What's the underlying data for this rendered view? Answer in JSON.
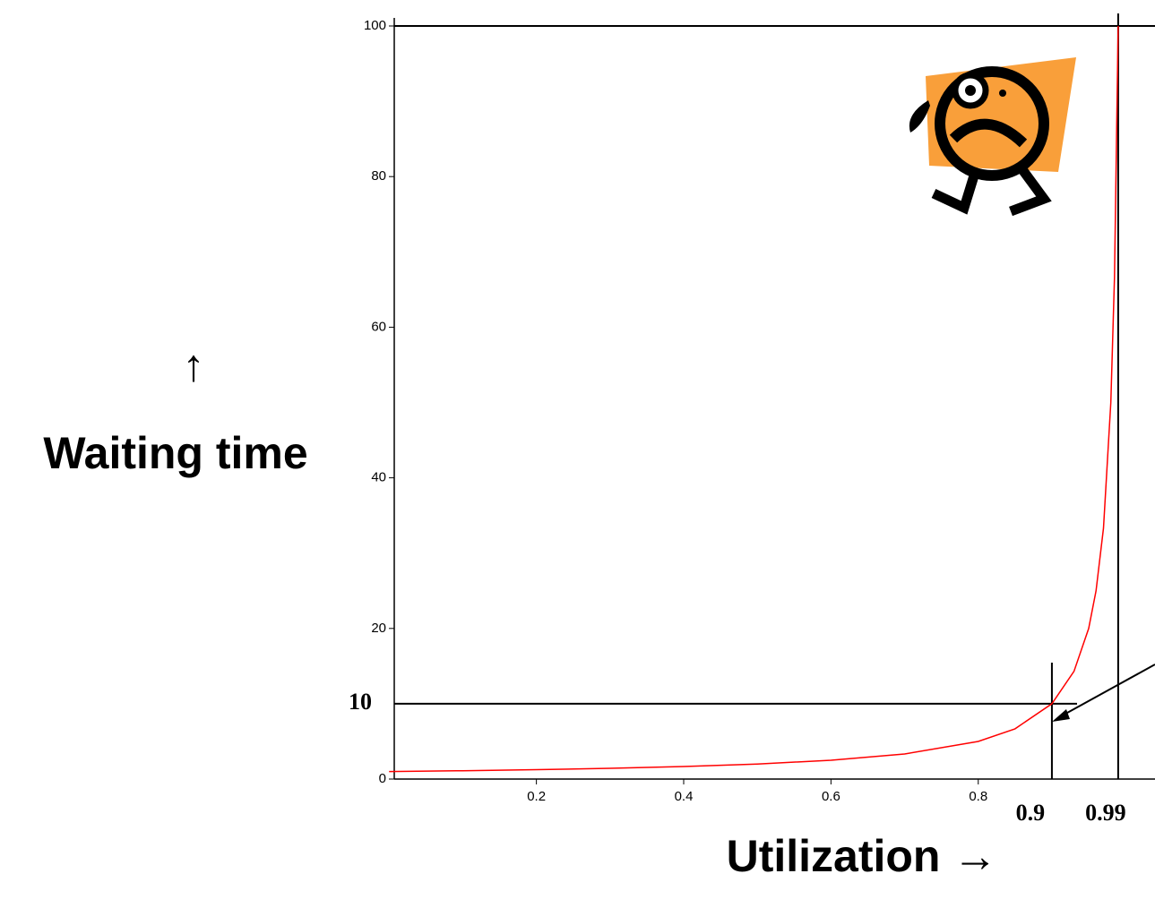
{
  "chart_data": {
    "type": "line",
    "y_label_arrow": "↑",
    "y_label": "Waiting time",
    "x_label": "Utilization  →",
    "x": [
      0,
      0.1,
      0.2,
      0.3,
      0.4,
      0.5,
      0.6,
      0.7,
      0.8,
      0.85,
      0.9,
      0.93,
      0.95,
      0.96,
      0.97,
      0.98,
      0.985,
      0.99
    ],
    "series": [
      {
        "color": "#ff0000",
        "values": [
          1,
          1.11,
          1.25,
          1.43,
          1.67,
          2,
          2.5,
          3.33,
          5,
          6.67,
          10,
          14.3,
          20,
          25,
          33.3,
          50,
          66.7,
          100
        ]
      }
    ],
    "xlim": [
      0.007,
      1.04
    ],
    "ylim": [
      0,
      100
    ],
    "xticks": [
      0.2,
      0.4,
      0.6,
      0.8
    ],
    "yticks": [
      0,
      20,
      40,
      60,
      80,
      100
    ],
    "xrefs": [
      0.9,
      0.99
    ],
    "yrefs": [
      10,
      100
    ]
  }
}
